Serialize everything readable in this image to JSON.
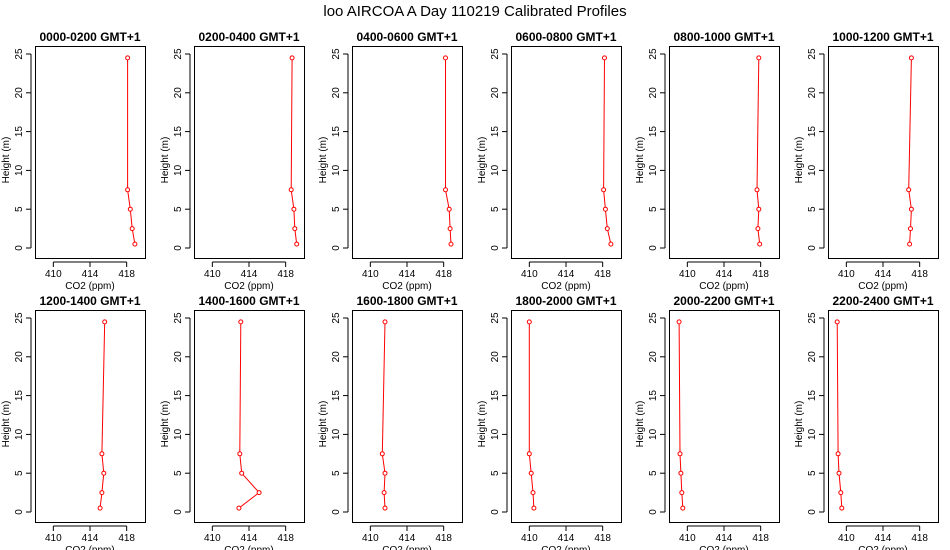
{
  "title": "loo AIRCOA A  Day 110219  Calibrated Profiles",
  "chart_data": {
    "type": "line",
    "xlabel": "CO2 (ppm)",
    "ylabel": "Height (m)",
    "xlim": [
      408,
      420
    ],
    "ylim": [
      0,
      25
    ],
    "xticks": [
      410,
      414,
      418
    ],
    "yticks": [
      0,
      5,
      10,
      15,
      20,
      25
    ],
    "series_color": "#ff0000",
    "heights": [
      0.5,
      2.5,
      5,
      7.5,
      24.5
    ],
    "panels": [
      {
        "title": "0000-0200 GMT+1",
        "values": [
          418.9,
          418.6,
          418.4,
          418.1,
          418.1
        ]
      },
      {
        "title": "0200-0400 GMT+1",
        "values": [
          419.2,
          419.0,
          418.9,
          418.6,
          418.7
        ]
      },
      {
        "title": "0400-0600 GMT+1",
        "values": [
          418.8,
          418.7,
          418.6,
          418.2,
          418.2
        ]
      },
      {
        "title": "0600-0800 GMT+1",
        "values": [
          418.9,
          418.5,
          418.3,
          418.1,
          418.2
        ]
      },
      {
        "title": "0800-1000 GMT+1",
        "values": [
          417.9,
          417.7,
          417.8,
          417.6,
          417.8
        ]
      },
      {
        "title": "1000-1200 GMT+1",
        "values": [
          416.9,
          417.0,
          417.1,
          416.8,
          417.1
        ]
      },
      {
        "title": "1200-1400 GMT+1",
        "values": [
          415.1,
          415.3,
          415.5,
          415.3,
          415.6
        ]
      },
      {
        "title": "1400-1600 GMT+1",
        "values": [
          412.9,
          415.1,
          413.2,
          413.0,
          413.1
        ]
      },
      {
        "title": "1600-1800 GMT+1",
        "values": [
          411.6,
          411.5,
          411.6,
          411.3,
          411.6
        ]
      },
      {
        "title": "1800-2000 GMT+1",
        "values": [
          410.5,
          410.4,
          410.2,
          410.0,
          410.0
        ]
      },
      {
        "title": "2000-2200 GMT+1",
        "values": [
          409.5,
          409.4,
          409.3,
          409.2,
          409.1
        ]
      },
      {
        "title": "2200-2400 GMT+1",
        "values": [
          409.5,
          409.4,
          409.2,
          409.1,
          409.0
        ]
      }
    ]
  }
}
